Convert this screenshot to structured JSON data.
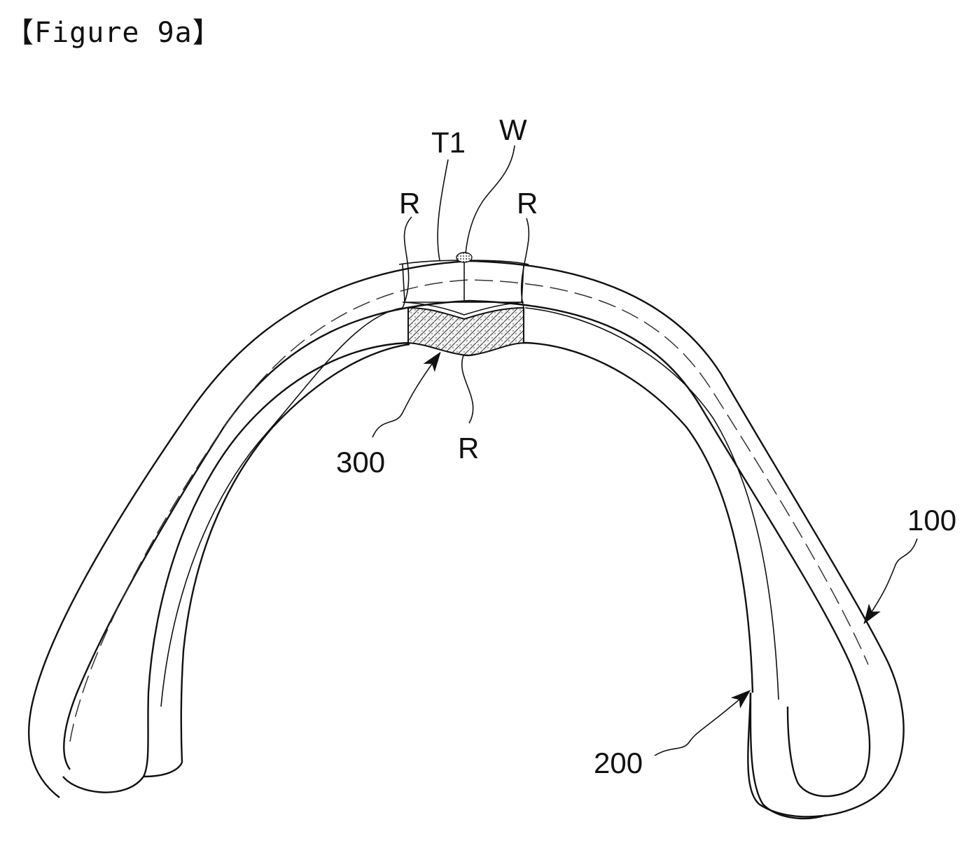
{
  "figure_title": "【Figure 9a】",
  "labels": {
    "t1": "T1",
    "w": "W",
    "r_left": "R",
    "r_right": "R",
    "r_bottom": "R",
    "part_300": "300",
    "part_100": "100",
    "part_200": "200"
  }
}
